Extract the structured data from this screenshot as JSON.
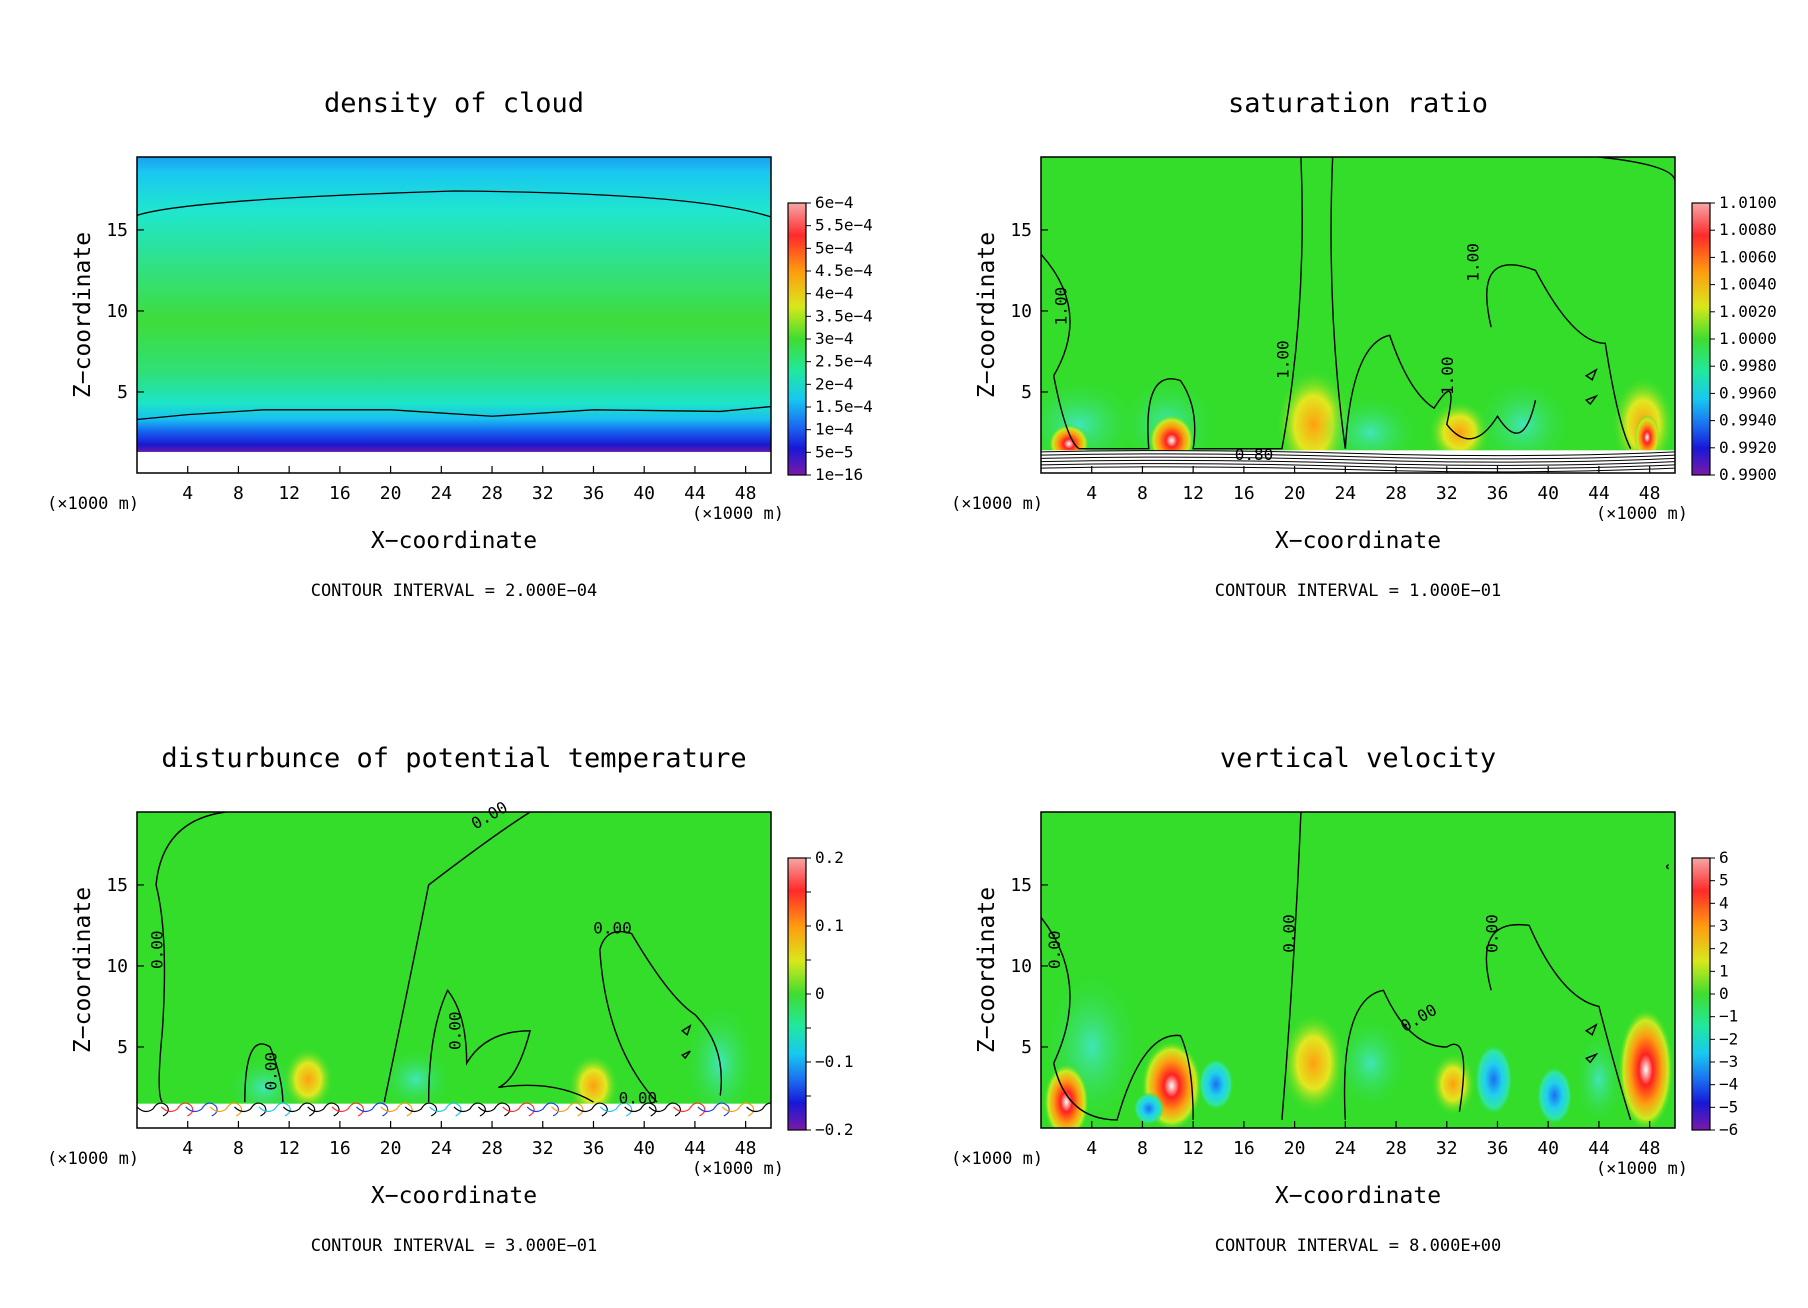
{
  "colors": {
    "background": "#ffffff",
    "field_green": "#33dd2a",
    "contour": "#000000"
  },
  "panels": [
    {
      "title": "density of cloud",
      "xlabel": "X−coordinate",
      "ylabel": "Z−coordinate",
      "x_unit_left": "(×1000 m)",
      "x_unit_right": "(×1000 m)",
      "contour_interval": "CONTOUR INTERVAL = 2.000E−04",
      "colorbar_labels": [
        "6e−4",
        "5.5e−4",
        "5e−4",
        "4.5e−4",
        "4e−4",
        "3.5e−4",
        "3e−4",
        "2.5e−4",
        "2e−4",
        "1.5e−4",
        "1e−4",
        "5e−5",
        "1e−16"
      ],
      "contour_labels": []
    },
    {
      "title": "saturation ratio",
      "xlabel": "X−coordinate",
      "ylabel": "Z−coordinate",
      "x_unit_left": "(×1000 m)",
      "x_unit_right": "(×1000 m)",
      "contour_interval": "CONTOUR INTERVAL = 1.000E−01",
      "colorbar_labels": [
        "1.0100",
        "1.0080",
        "1.0060",
        "1.0040",
        "1.0020",
        "1.0000",
        "0.9980",
        "0.9960",
        "0.9940",
        "0.9920",
        "0.9900"
      ],
      "contour_labels": [
        "1.00",
        "1.00",
        "1.00",
        "1.00",
        "0.80"
      ]
    },
    {
      "title": "disturbunce of potential temperature",
      "xlabel": "X−coordinate",
      "ylabel": "Z−coordinate",
      "x_unit_left": "(×1000 m)",
      "x_unit_right": "(×1000 m)",
      "contour_interval": "CONTOUR INTERVAL = 3.000E−01",
      "colorbar_labels": [
        "0.2",
        "",
        "0.1",
        "",
        "0",
        "",
        "−0.1",
        "",
        "−0.2"
      ],
      "contour_labels": [
        "0.00",
        "0.00",
        "0.00",
        "0.00",
        "0.00",
        "0.00"
      ]
    },
    {
      "title": "vertical velocity",
      "xlabel": "X−coordinate",
      "ylabel": "Z−coordinate",
      "x_unit_left": "(×1000 m)",
      "x_unit_right": "(×1000 m)",
      "contour_interval": "CONTOUR INTERVAL = 8.000E+00",
      "colorbar_labels": [
        "6",
        "5",
        "4",
        "3",
        "2",
        "1",
        "0",
        "−1",
        "−2",
        "−3",
        "−4",
        "−5",
        "−6"
      ],
      "contour_labels": [
        "0.00",
        "0.00",
        "0.00",
        "0.00"
      ]
    }
  ],
  "chart_data": [
    {
      "type": "heatmap",
      "title": "density of cloud",
      "xlabel": "X−coordinate",
      "ylabel": "Z−coordinate",
      "x_ticks": [
        4,
        8,
        12,
        16,
        20,
        24,
        28,
        32,
        36,
        40,
        44,
        48
      ],
      "y_ticks": [
        5,
        10,
        15
      ],
      "xlim": [
        0,
        50
      ],
      "ylim": [
        0,
        19.5
      ],
      "colorbar": [
        "6e−4",
        "5.5e−4",
        "5e−4",
        "4.5e−4",
        "4e−4",
        "3.5e−4",
        "3e−4",
        "2.5e−4",
        "2e−4",
        "1.5e−4",
        "1e−4",
        "5e−5",
        "1e−16"
      ],
      "contour_interval": "2.000E−04"
    },
    {
      "type": "heatmap",
      "title": "saturation ratio",
      "xlabel": "X−coordinate",
      "ylabel": "Z−coordinate",
      "x_ticks": [
        4,
        8,
        12,
        16,
        20,
        24,
        28,
        32,
        36,
        40,
        44,
        48
      ],
      "y_ticks": [
        5,
        10,
        15
      ],
      "xlim": [
        0,
        50
      ],
      "ylim": [
        0,
        19.5
      ],
      "colorbar": [
        "1.0100",
        "1.0080",
        "1.0060",
        "1.0040",
        "1.0020",
        "1.0000",
        "0.9980",
        "0.9960",
        "0.9940",
        "0.9920",
        "0.9900"
      ],
      "contour_interval": "1.000E−01"
    },
    {
      "type": "heatmap",
      "title": "disturbunce of potential temperature",
      "xlabel": "X−coordinate",
      "ylabel": "Z−coordinate",
      "x_ticks": [
        4,
        8,
        12,
        16,
        20,
        24,
        28,
        32,
        36,
        40,
        44,
        48
      ],
      "y_ticks": [
        5,
        10,
        15
      ],
      "xlim": [
        0,
        50
      ],
      "ylim": [
        0,
        19.5
      ],
      "colorbar": [
        "0.2",
        "0.1",
        "0",
        "−0.1",
        "−0.2"
      ],
      "contour_interval": "3.000E−01"
    },
    {
      "type": "heatmap",
      "title": "vertical velocity",
      "xlabel": "X−coordinate",
      "ylabel": "Z−coordinate",
      "x_ticks": [
        4,
        8,
        12,
        16,
        20,
        24,
        28,
        32,
        36,
        40,
        44,
        48
      ],
      "y_ticks": [
        5,
        10,
        15
      ],
      "xlim": [
        0,
        50
      ],
      "ylim": [
        0,
        19.5
      ],
      "colorbar": [
        "6",
        "5",
        "4",
        "3",
        "2",
        "1",
        "0",
        "−1",
        "−2",
        "−3",
        "−4",
        "−5",
        "−6"
      ],
      "contour_interval": "8.000E+00"
    }
  ]
}
